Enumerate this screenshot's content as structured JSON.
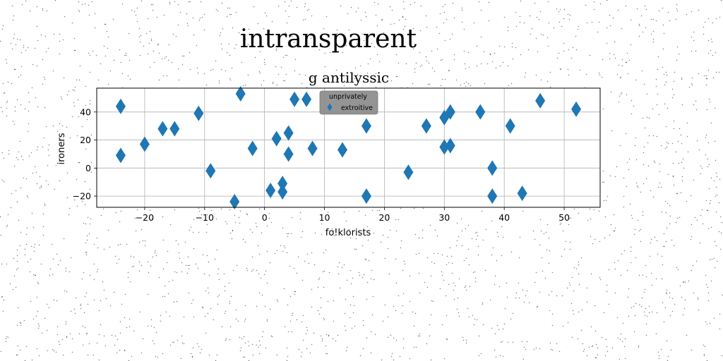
{
  "colors": {
    "marker": "#1f77b4",
    "grid": "#b0b0b0",
    "legend_bg": "#8c8c8c",
    "noise": "#222222"
  },
  "chart_data": {
    "type": "scatter",
    "suptitle": "intransparent",
    "title": "g antilyssic",
    "xlabel": "fo!klorists",
    "ylabel": "ironers",
    "xlim": [
      -28,
      56
    ],
    "ylim": [
      -28,
      57
    ],
    "xticks": [
      -20,
      -10,
      0,
      10,
      20,
      30,
      40,
      50
    ],
    "yticks": [
      -20,
      0,
      20,
      40
    ],
    "grid": true,
    "legend": {
      "title": "unprivately",
      "placement": "upper-center",
      "entries": [
        "extroitive"
      ]
    },
    "series": [
      {
        "name": "extroitive",
        "marker": "diamond",
        "points": [
          [
            -24,
            44
          ],
          [
            -24,
            9
          ],
          [
            -20,
            17
          ],
          [
            -17,
            28
          ],
          [
            -15,
            28
          ],
          [
            -11,
            39
          ],
          [
            -9,
            -2
          ],
          [
            -5,
            -24
          ],
          [
            -4,
            53
          ],
          [
            -2,
            14
          ],
          [
            1,
            -16
          ],
          [
            2,
            21
          ],
          [
            3,
            -11
          ],
          [
            3,
            -17
          ],
          [
            4,
            25
          ],
          [
            4,
            10
          ],
          [
            5,
            49
          ],
          [
            7,
            49
          ],
          [
            8,
            14
          ],
          [
            13,
            13
          ],
          [
            17,
            30
          ],
          [
            17,
            -20
          ],
          [
            24,
            -3
          ],
          [
            27,
            30
          ],
          [
            30,
            36
          ],
          [
            30,
            15
          ],
          [
            31,
            40
          ],
          [
            31,
            16
          ],
          [
            36,
            40
          ],
          [
            38,
            0
          ],
          [
            38,
            -20
          ],
          [
            41,
            30
          ],
          [
            43,
            -18
          ],
          [
            46,
            48
          ],
          [
            52,
            42
          ]
        ]
      }
    ]
  }
}
